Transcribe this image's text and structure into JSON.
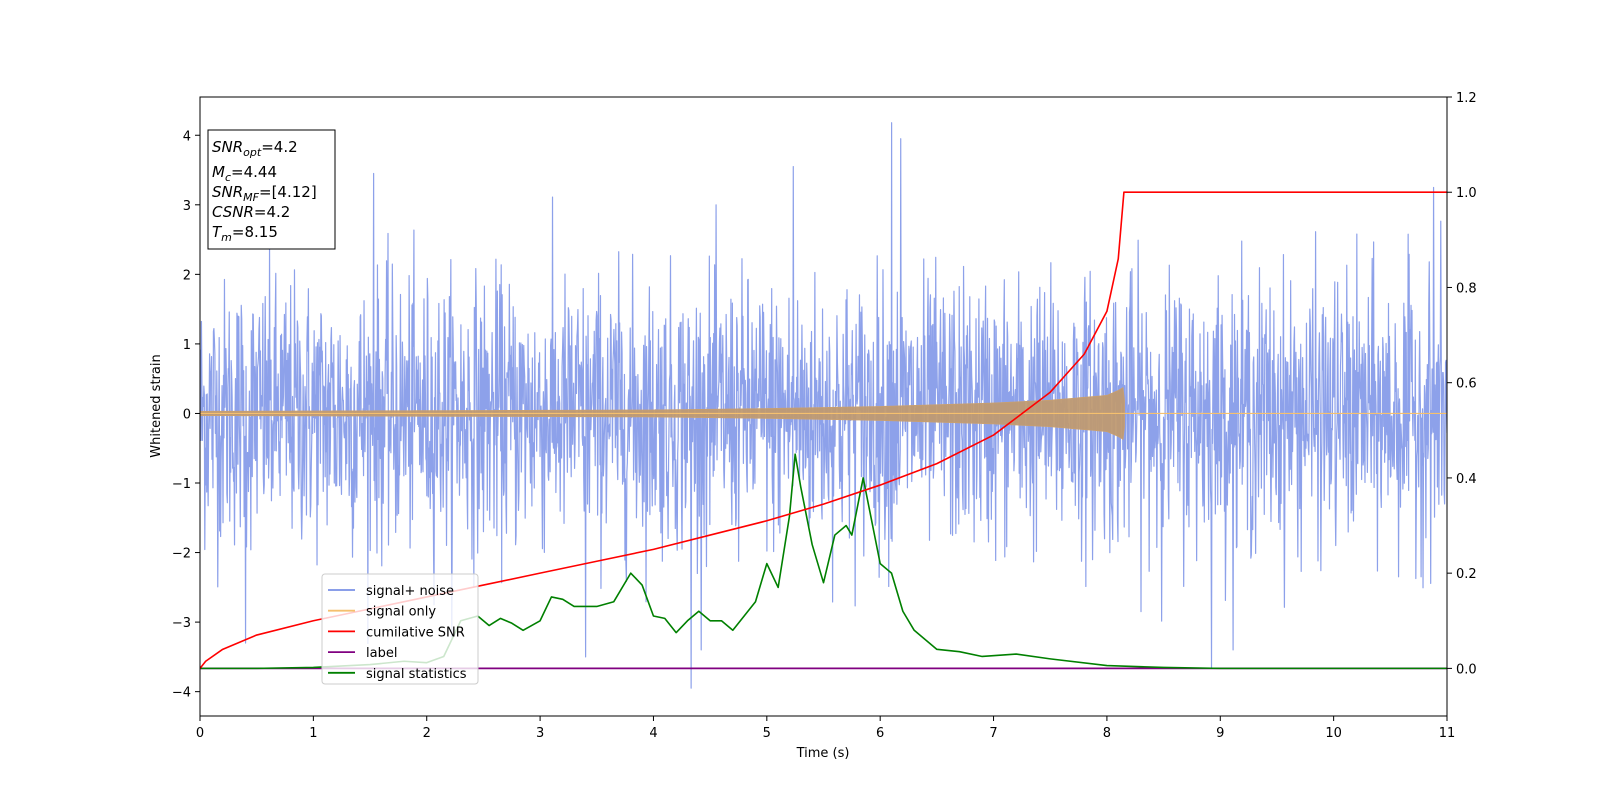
{
  "chart_data": {
    "type": "line",
    "xlabel": "Time (s)",
    "ylabel": "Whitened strain",
    "xlim": [
      0,
      11
    ],
    "ylim": [
      -4.35,
      4.55
    ],
    "y2lim": [
      -0.1,
      1.2
    ],
    "x_ticks": [
      "0",
      "1",
      "2",
      "3",
      "4",
      "5",
      "6",
      "7",
      "8",
      "9",
      "10",
      "11"
    ],
    "y_ticks": [
      "4",
      "3",
      "2",
      "1",
      "0",
      "−1",
      "−2",
      "−3",
      "−4"
    ],
    "y2_ticks": [
      "1.2",
      "1.0",
      "0.8",
      "0.6",
      "0.4",
      "0.2",
      "0.0"
    ],
    "grid": false,
    "legend_position": "lower-left",
    "legend": [
      {
        "label": "signal+ noise",
        "color": "#7990e6"
      },
      {
        "label": "signal only",
        "color": "#f5c06e"
      },
      {
        "label": "cumilative SNR",
        "color": "#ff0000"
      },
      {
        "label": "label",
        "color": "#800080"
      },
      {
        "label": "signal statistics",
        "color": "#008000"
      }
    ],
    "info_box": [
      {
        "symbol": "SNR",
        "sub": "opt",
        "value": "=4.2"
      },
      {
        "symbol": "M",
        "sub": "c",
        "value": "=4.44"
      },
      {
        "symbol": "SNR",
        "sub": "MF",
        "value": "=[4.12]"
      },
      {
        "symbol": "CSNR",
        "sub": "",
        "value": "=4.2"
      },
      {
        "symbol": "T",
        "sub": "m",
        "value": "=8.15"
      }
    ],
    "series": [
      {
        "name": "signal+ noise",
        "axis": "left",
        "color": "#7990e6",
        "description_values": {
          "approx_range": [
            -3.95,
            4.18
          ],
          "noise_std": 1.0,
          "duration_s": 11
        },
        "peaks": [
          [
            0.4,
            -3.3
          ],
          [
            1.53,
            3.45
          ],
          [
            3.4,
            -3.5
          ],
          [
            4.33,
            -3.95
          ],
          [
            5.23,
            3.55
          ],
          [
            6.1,
            4.18
          ],
          [
            6.18,
            3.95
          ],
          [
            8.92,
            -3.65
          ],
          [
            10.88,
            3.25
          ]
        ]
      },
      {
        "name": "signal only",
        "axis": "left",
        "color": "#f5c06e",
        "envelope": [
          [
            0,
            0.03
          ],
          [
            2,
            0.04
          ],
          [
            4,
            0.05
          ],
          [
            5,
            0.07
          ],
          [
            6,
            0.1
          ],
          [
            7,
            0.15
          ],
          [
            7.5,
            0.19
          ],
          [
            8.0,
            0.26
          ],
          [
            8.1,
            0.33
          ],
          [
            8.15,
            0.38
          ],
          [
            8.16,
            0.0
          ],
          [
            11,
            0.0
          ]
        ]
      },
      {
        "name": "cumilative SNR",
        "axis": "right",
        "color": "#ff0000",
        "points": [
          [
            0,
            0.0
          ],
          [
            0.05,
            0.015
          ],
          [
            0.2,
            0.04
          ],
          [
            0.5,
            0.07
          ],
          [
            1,
            0.1
          ],
          [
            1.5,
            0.125
          ],
          [
            2,
            0.15
          ],
          [
            2.5,
            0.175
          ],
          [
            3,
            0.2
          ],
          [
            3.5,
            0.225
          ],
          [
            4,
            0.25
          ],
          [
            4.5,
            0.28
          ],
          [
            5,
            0.31
          ],
          [
            5.5,
            0.345
          ],
          [
            6,
            0.385
          ],
          [
            6.5,
            0.43
          ],
          [
            7,
            0.49
          ],
          [
            7.5,
            0.58
          ],
          [
            7.8,
            0.66
          ],
          [
            8.0,
            0.75
          ],
          [
            8.1,
            0.86
          ],
          [
            8.15,
            1.0
          ],
          [
            11,
            1.0
          ]
        ]
      },
      {
        "name": "label",
        "axis": "right",
        "color": "#800080",
        "points": [
          [
            0,
            0.0
          ],
          [
            11,
            0.0
          ]
        ]
      },
      {
        "name": "signal statistics",
        "axis": "right",
        "color": "#008000",
        "points": [
          [
            0,
            0.0
          ],
          [
            0.5,
            0.0
          ],
          [
            1.0,
            0.002
          ],
          [
            1.5,
            0.008
          ],
          [
            1.8,
            0.015
          ],
          [
            2.0,
            0.012
          ],
          [
            2.15,
            0.025
          ],
          [
            2.3,
            0.1
          ],
          [
            2.45,
            0.11
          ],
          [
            2.55,
            0.09
          ],
          [
            2.65,
            0.105
          ],
          [
            2.75,
            0.095
          ],
          [
            2.85,
            0.08
          ],
          [
            3.0,
            0.1
          ],
          [
            3.1,
            0.15
          ],
          [
            3.2,
            0.145
          ],
          [
            3.3,
            0.13
          ],
          [
            3.5,
            0.13
          ],
          [
            3.65,
            0.14
          ],
          [
            3.8,
            0.2
          ],
          [
            3.9,
            0.175
          ],
          [
            4.0,
            0.11
          ],
          [
            4.1,
            0.105
          ],
          [
            4.2,
            0.075
          ],
          [
            4.3,
            0.1
          ],
          [
            4.4,
            0.12
          ],
          [
            4.5,
            0.1
          ],
          [
            4.6,
            0.1
          ],
          [
            4.7,
            0.08
          ],
          [
            4.8,
            0.11
          ],
          [
            4.9,
            0.14
          ],
          [
            5.0,
            0.22
          ],
          [
            5.1,
            0.17
          ],
          [
            5.2,
            0.32
          ],
          [
            5.25,
            0.45
          ],
          [
            5.3,
            0.38
          ],
          [
            5.4,
            0.26
          ],
          [
            5.5,
            0.18
          ],
          [
            5.6,
            0.28
          ],
          [
            5.7,
            0.3
          ],
          [
            5.75,
            0.28
          ],
          [
            5.85,
            0.4
          ],
          [
            5.9,
            0.34
          ],
          [
            6.0,
            0.22
          ],
          [
            6.1,
            0.2
          ],
          [
            6.2,
            0.12
          ],
          [
            6.3,
            0.08
          ],
          [
            6.5,
            0.04
          ],
          [
            6.7,
            0.035
          ],
          [
            6.9,
            0.025
          ],
          [
            7.2,
            0.03
          ],
          [
            7.5,
            0.02
          ],
          [
            8.0,
            0.006
          ],
          [
            8.5,
            0.002
          ],
          [
            9.0,
            0.0
          ],
          [
            11,
            0.0
          ]
        ]
      }
    ]
  }
}
